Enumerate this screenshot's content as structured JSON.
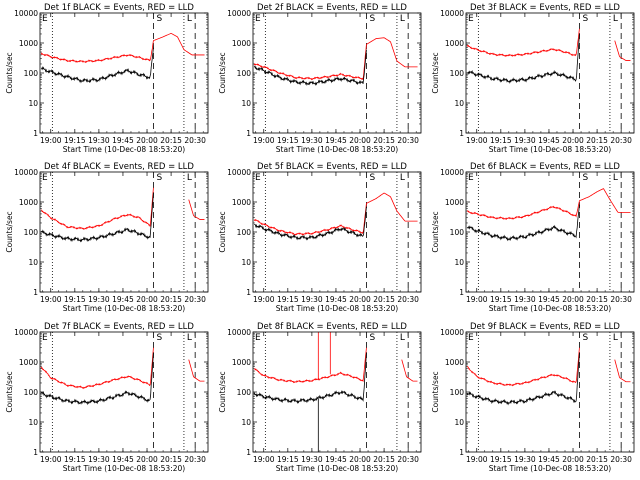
{
  "chart_data": {
    "type": "line",
    "y_scale": "log",
    "ylim": [
      1,
      10000
    ],
    "y_ticks": [
      1,
      10,
      100,
      1000,
      10000
    ],
    "ylabel": "Counts/sec",
    "xlabel": "Start Time (10-Dec-08 18:53:20)",
    "x_tick_labels": [
      "19:00",
      "19:15",
      "19:30",
      "19:45",
      "20:00",
      "20:15",
      "20:30"
    ],
    "x_tick_times_min": [
      1140,
      1155,
      1170,
      1185,
      1200,
      1215,
      1230
    ],
    "xlim_min": [
      1133.3,
      1238
    ],
    "markers": {
      "E": "E",
      "S": "S",
      "L": "L"
    },
    "vline_times_min": {
      "E": 1141,
      "S": 1204,
      "L1": 1223,
      "L2": 1230
    },
    "series_colors": {
      "events": "#000000",
      "lld": "#ff0000"
    },
    "panels": [
      {
        "title": "Det 1f BLACK = Events, RED = LLD",
        "lld": [
          [
            1134,
            450
          ],
          [
            1140,
            350
          ],
          [
            1150,
            260
          ],
          [
            1160,
            240
          ],
          [
            1170,
            260
          ],
          [
            1180,
            330
          ],
          [
            1188,
            400
          ],
          [
            1195,
            330
          ],
          [
            1202,
            260
          ],
          [
            1204,
            1200
          ],
          [
            1210,
            1600
          ],
          [
            1215,
            2100
          ],
          [
            1219,
            1600
          ],
          [
            1223,
            600
          ],
          [
            1228,
            400
          ],
          [
            1236,
            400
          ]
        ],
        "events": [
          [
            1134,
            140
          ],
          [
            1140,
            110
          ],
          [
            1150,
            75
          ],
          [
            1160,
            55
          ],
          [
            1170,
            60
          ],
          [
            1180,
            90
          ],
          [
            1188,
            120
          ],
          [
            1195,
            90
          ],
          [
            1202,
            70
          ],
          [
            1204,
            700
          ]
        ]
      },
      {
        "title": "Det 2f BLACK = Events, RED = LLD",
        "lld": [
          [
            1134,
            200
          ],
          [
            1140,
            160
          ],
          [
            1150,
            100
          ],
          [
            1160,
            70
          ],
          [
            1170,
            65
          ],
          [
            1180,
            75
          ],
          [
            1188,
            90
          ],
          [
            1195,
            75
          ],
          [
            1202,
            65
          ],
          [
            1204,
            900
          ],
          [
            1210,
            1400
          ],
          [
            1215,
            1500
          ],
          [
            1219,
            1100
          ],
          [
            1223,
            250
          ],
          [
            1228,
            160
          ],
          [
            1236,
            160
          ]
        ],
        "events": [
          [
            1134,
            160
          ],
          [
            1140,
            120
          ],
          [
            1150,
            70
          ],
          [
            1160,
            50
          ],
          [
            1170,
            45
          ],
          [
            1180,
            55
          ],
          [
            1188,
            65
          ],
          [
            1195,
            55
          ],
          [
            1202,
            45
          ],
          [
            1204,
            600
          ]
        ]
      },
      {
        "title": "Det 3f BLACK = Events, RED = LLD",
        "lld": [
          [
            1134,
            800
          ],
          [
            1140,
            600
          ],
          [
            1150,
            420
          ],
          [
            1160,
            380
          ],
          [
            1170,
            420
          ],
          [
            1180,
            520
          ],
          [
            1188,
            620
          ],
          [
            1195,
            500
          ],
          [
            1202,
            380
          ],
          [
            1204,
            3000
          ]
        ],
        "lld_tail": [
          [
            1226,
            1200
          ],
          [
            1229,
            350
          ],
          [
            1233,
            260
          ],
          [
            1236,
            260
          ]
        ],
        "events": [
          [
            1134,
            110
          ],
          [
            1140,
            90
          ],
          [
            1150,
            65
          ],
          [
            1160,
            55
          ],
          [
            1170,
            60
          ],
          [
            1180,
            80
          ],
          [
            1188,
            100
          ],
          [
            1195,
            80
          ],
          [
            1202,
            60
          ],
          [
            1204,
            2000
          ]
        ]
      },
      {
        "title": "Det 4f BLACK = Events, RED = LLD",
        "lld": [
          [
            1134,
            550
          ],
          [
            1140,
            300
          ],
          [
            1150,
            150
          ],
          [
            1160,
            130
          ],
          [
            1170,
            160
          ],
          [
            1180,
            280
          ],
          [
            1188,
            380
          ],
          [
            1195,
            300
          ],
          [
            1202,
            160
          ],
          [
            1204,
            3000
          ]
        ],
        "lld_tail": [
          [
            1226,
            1200
          ],
          [
            1229,
            350
          ],
          [
            1233,
            260
          ],
          [
            1236,
            260
          ]
        ],
        "events": [
          [
            1134,
            100
          ],
          [
            1140,
            80
          ],
          [
            1150,
            60
          ],
          [
            1160,
            55
          ],
          [
            1170,
            65
          ],
          [
            1180,
            90
          ],
          [
            1188,
            120
          ],
          [
            1195,
            90
          ],
          [
            1202,
            65
          ],
          [
            1204,
            2000
          ]
        ]
      },
      {
        "title": "Det 5f BLACK = Events, RED = LLD",
        "lld": [
          [
            1134,
            260
          ],
          [
            1140,
            180
          ],
          [
            1150,
            110
          ],
          [
            1160,
            85
          ],
          [
            1170,
            90
          ],
          [
            1180,
            120
          ],
          [
            1188,
            160
          ],
          [
            1195,
            120
          ],
          [
            1202,
            95
          ],
          [
            1204,
            900
          ],
          [
            1210,
            1300
          ],
          [
            1215,
            2000
          ],
          [
            1219,
            1500
          ],
          [
            1223,
            500
          ],
          [
            1228,
            230
          ],
          [
            1236,
            230
          ]
        ],
        "events": [
          [
            1134,
            180
          ],
          [
            1140,
            130
          ],
          [
            1150,
            85
          ],
          [
            1160,
            65
          ],
          [
            1170,
            65
          ],
          [
            1180,
            90
          ],
          [
            1188,
            130
          ],
          [
            1195,
            95
          ],
          [
            1202,
            70
          ],
          [
            1204,
            700
          ]
        ]
      },
      {
        "title": "Det 6f BLACK = Events, RED = LLD",
        "lld": [
          [
            1134,
            480
          ],
          [
            1140,
            400
          ],
          [
            1150,
            300
          ],
          [
            1160,
            280
          ],
          [
            1170,
            330
          ],
          [
            1180,
            500
          ],
          [
            1188,
            700
          ],
          [
            1195,
            500
          ],
          [
            1202,
            330
          ],
          [
            1204,
            1100
          ],
          [
            1210,
            1500
          ],
          [
            1215,
            2200
          ],
          [
            1219,
            2800
          ],
          [
            1223,
            1200
          ],
          [
            1228,
            450
          ],
          [
            1236,
            450
          ]
        ],
        "events": [
          [
            1134,
            150
          ],
          [
            1140,
            110
          ],
          [
            1150,
            75
          ],
          [
            1160,
            60
          ],
          [
            1170,
            70
          ],
          [
            1180,
            100
          ],
          [
            1188,
            140
          ],
          [
            1195,
            100
          ],
          [
            1202,
            75
          ],
          [
            1204,
            800
          ]
        ]
      },
      {
        "title": "Det 7f BLACK = Events, RED = LLD",
        "lld": [
          [
            1134,
            700
          ],
          [
            1140,
            300
          ],
          [
            1150,
            170
          ],
          [
            1160,
            140
          ],
          [
            1170,
            180
          ],
          [
            1180,
            260
          ],
          [
            1188,
            330
          ],
          [
            1195,
            250
          ],
          [
            1202,
            170
          ],
          [
            1204,
            3000
          ]
        ],
        "lld_tail": [
          [
            1226,
            1200
          ],
          [
            1229,
            320
          ],
          [
            1233,
            230
          ],
          [
            1236,
            230
          ]
        ],
        "events": [
          [
            1134,
            90
          ],
          [
            1140,
            70
          ],
          [
            1150,
            50
          ],
          [
            1160,
            45
          ],
          [
            1170,
            50
          ],
          [
            1180,
            70
          ],
          [
            1188,
            95
          ],
          [
            1195,
            70
          ],
          [
            1202,
            50
          ],
          [
            1204,
            2000
          ]
        ]
      },
      {
        "title": "Det 8f BLACK = Events, RED = LLD",
        "lld": [
          [
            1134,
            600
          ],
          [
            1140,
            350
          ],
          [
            1150,
            250
          ],
          [
            1160,
            220
          ],
          [
            1170,
            240
          ],
          [
            1180,
            320
          ],
          [
            1188,
            420
          ],
          [
            1195,
            330
          ],
          [
            1202,
            240
          ],
          [
            1204,
            3000
          ]
        ],
        "lld_tail": [
          [
            1226,
            1200
          ],
          [
            1229,
            320
          ],
          [
            1233,
            230
          ],
          [
            1236,
            230
          ]
        ],
        "events": [
          [
            1134,
            90
          ],
          [
            1140,
            70
          ],
          [
            1150,
            55
          ],
          [
            1160,
            50
          ],
          [
            1170,
            55
          ],
          [
            1180,
            75
          ],
          [
            1188,
            100
          ],
          [
            1195,
            75
          ],
          [
            1202,
            55
          ],
          [
            1204,
            2000
          ]
        ],
        "spike_time_min": 1174
      },
      {
        "title": "Det 9f BLACK = Events, RED = LLD",
        "lld": [
          [
            1134,
            700
          ],
          [
            1140,
            330
          ],
          [
            1150,
            200
          ],
          [
            1160,
            170
          ],
          [
            1170,
            200
          ],
          [
            1180,
            290
          ],
          [
            1188,
            380
          ],
          [
            1195,
            290
          ],
          [
            1202,
            200
          ],
          [
            1204,
            3000
          ]
        ],
        "lld_tail": [
          [
            1226,
            1200
          ],
          [
            1229,
            300
          ],
          [
            1233,
            220
          ],
          [
            1236,
            220
          ]
        ],
        "events": [
          [
            1134,
            90
          ],
          [
            1140,
            70
          ],
          [
            1150,
            50
          ],
          [
            1160,
            45
          ],
          [
            1170,
            50
          ],
          [
            1180,
            70
          ],
          [
            1188,
            95
          ],
          [
            1195,
            70
          ],
          [
            1202,
            50
          ],
          [
            1204,
            2000
          ]
        ]
      }
    ]
  }
}
